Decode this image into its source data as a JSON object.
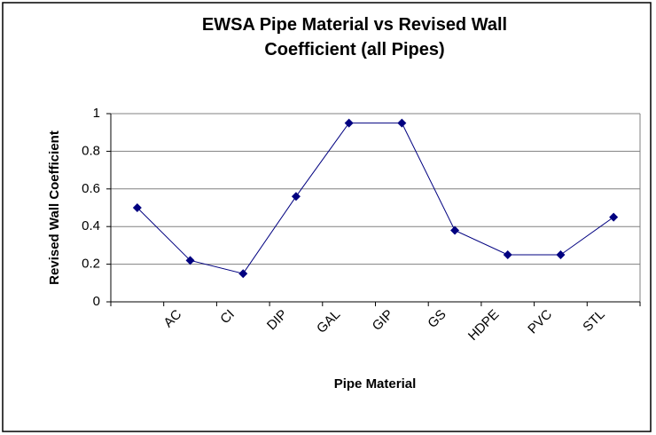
{
  "chart_data": {
    "type": "line",
    "title": "EWSA Pipe Material vs Revised Wall Coefficient (all Pipes)",
    "x_label": "Pipe Material",
    "y_label": "Revised Wall Coefficient",
    "categories": [
      null,
      "AC",
      "CI",
      "DIP",
      "GAL",
      "GIP",
      "GS",
      "HDPE",
      "PVC",
      "STL"
    ],
    "values": [
      0.5,
      0.22,
      0.15,
      0.56,
      0.95,
      0.95,
      0.38,
      0.25,
      0.25,
      0.45
    ],
    "color": "#000080",
    "ylim": [
      0,
      1
    ],
    "yticks": [
      0,
      0.2,
      0.4,
      0.6,
      0.8,
      1
    ],
    "grid": true
  }
}
